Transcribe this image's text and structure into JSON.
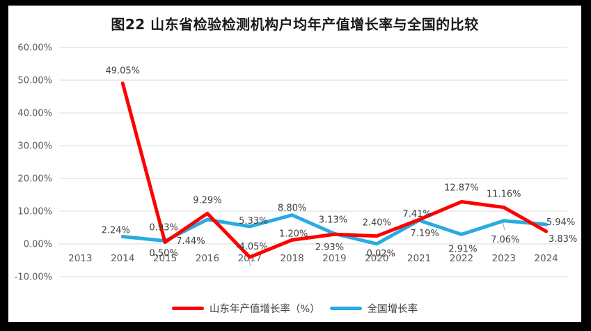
{
  "title": "图22 山东省检验检测机构户均年产值增长率与全国的比较",
  "chart_data": {
    "type": "line",
    "categories": [
      "2013",
      "2014",
      "2015",
      "2016",
      "2017",
      "2018",
      "2019",
      "2020",
      "2021",
      "2022",
      "2023",
      "2024"
    ],
    "series": [
      {
        "name": "山东年产值增长率（%）",
        "color": "#ff0000",
        "values": [
          null,
          49.05,
          0.5,
          9.29,
          -4.05,
          1.2,
          2.93,
          2.4,
          7.41,
          12.87,
          11.16,
          3.83
        ],
        "labels": [
          "",
          "49.05%",
          "0.50%",
          "9.29%",
          "-4.05%",
          "1.20%",
          "2.93%",
          "2.40%",
          "7.41%",
          "12.87%",
          "11.16%",
          "3.83%"
        ]
      },
      {
        "name": "全国增长率",
        "color": "#29abe2",
        "values": [
          null,
          2.24,
          0.93,
          7.44,
          5.33,
          8.8,
          3.13,
          0.02,
          7.19,
          2.91,
          7.06,
          5.94
        ],
        "labels": [
          "",
          "2.24%",
          "0.93%",
          "7.44%",
          "5.33%",
          "8.80%",
          "3.13%",
          "0.02%",
          "7.19%",
          "2.91%",
          "7.06%",
          "5.94%"
        ]
      }
    ],
    "xlabel": "",
    "ylabel": "",
    "ylim": [
      -10,
      60
    ],
    "y_ticks": [
      {
        "value": 60,
        "label": "60.00%"
      },
      {
        "value": 50,
        "label": "50.00%"
      },
      {
        "value": 40,
        "label": "40.00%"
      },
      {
        "value": 30,
        "label": "30.00%"
      },
      {
        "value": 20,
        "label": "20.00%"
      },
      {
        "value": 10,
        "label": "10.00%"
      },
      {
        "value": 0,
        "label": "0.00%"
      },
      {
        "value": -10,
        "label": "-10.00%"
      }
    ],
    "grid": true,
    "legend_position": "bottom"
  },
  "layout_hints": {
    "label_offsets": [
      [
        null,
        [
          0,
          -18
        ],
        [
          -2,
          16
        ],
        [
          0,
          -19
        ],
        [
          3,
          -15
        ],
        [
          2,
          -9
        ],
        [
          -7,
          19
        ],
        [
          0,
          -19
        ],
        [
          -3,
          -8
        ],
        [
          0,
          -20
        ],
        [
          0,
          -19
        ],
        [
          24,
          11
        ]
      ],
      [
        null,
        [
          -10,
          -9
        ],
        [
          -2,
          -19
        ],
        [
          -24,
          31
        ],
        [
          5,
          -8
        ],
        [
          0,
          -10
        ],
        [
          -2,
          -20
        ],
        [
          6,
          14
        ],
        [
          8,
          19
        ],
        [
          2,
          21
        ],
        [
          2,
          27
        ],
        [
          21,
          -3
        ]
      ]
    ],
    "leaders": [
      {
        "series": 0,
        "index": 4
      },
      {
        "series": 1,
        "index": 10
      }
    ]
  }
}
